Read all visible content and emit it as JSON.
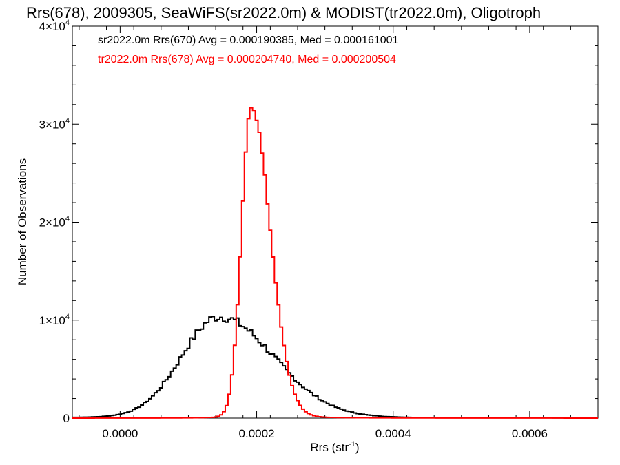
{
  "chart_data": {
    "type": "histogram-step",
    "title": "Rrs(678), 2009305, SeaWiFS(sr2022.0m) & MODIST(tr2022.0m), Oligotroph",
    "xlabel": "Rrs (str",
    "xlabel_sup": "-1",
    "xlabel_close": ")",
    "ylabel": "Number of Observations",
    "xlim": [
      -7e-05,
      0.0007
    ],
    "ylim": [
      0,
      40000
    ],
    "x_ticks": [
      {
        "value": 0.0,
        "label": "0.0000"
      },
      {
        "value": 0.0002,
        "label": "0.0002"
      },
      {
        "value": 0.0004,
        "label": "0.0004"
      },
      {
        "value": 0.0006,
        "label": "0.0006"
      }
    ],
    "y_ticks": [
      {
        "value": 0,
        "base": "0",
        "exp": ""
      },
      {
        "value": 10000,
        "base": "1×10",
        "exp": "4"
      },
      {
        "value": 20000,
        "base": "2×10",
        "exp": "4"
      },
      {
        "value": 30000,
        "base": "3×10",
        "exp": "4"
      },
      {
        "value": 40000,
        "base": "4×10",
        "exp": "4"
      }
    ],
    "series": [
      {
        "name": "sr2022.0m Rrs(670) Avg = 0.000190385, Med = 0.000161001",
        "color": "#000000",
        "model": {
          "peak": 10200,
          "mode": 0.000145,
          "sigma_left": 5.5e-05,
          "sigma_right": 8e-05,
          "floor": 150,
          "noise": 0.05
        }
      },
      {
        "name": "tr2022.0m Rrs(678) Avg = 0.000204740, Med = 0.000200504",
        "color": "#ff0000",
        "model": {
          "peak": 30700,
          "mode": 0.000192,
          "sigma_left": 1.4e-05,
          "sigma_right": 2.8e-05,
          "floor": 0,
          "noise": 0.01
        }
      }
    ],
    "bin_width": 4e-06
  }
}
